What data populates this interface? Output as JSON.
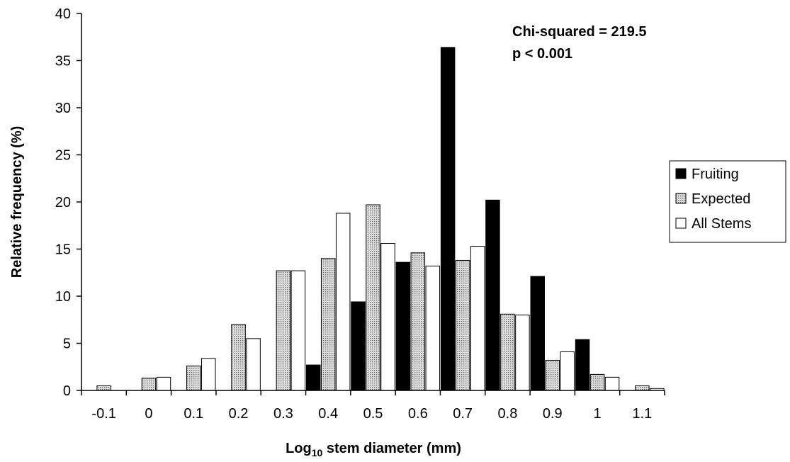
{
  "chart_data": {
    "type": "bar",
    "categories": [
      "-0.1",
      "0",
      "0.1",
      "0.2",
      "0.3",
      "0.4",
      "0.5",
      "0.6",
      "0.7",
      "0.8",
      "0.9",
      "1",
      "1.1"
    ],
    "series": [
      {
        "name": "Fruiting",
        "values": [
          0,
          0,
          0,
          0,
          0,
          2.7,
          9.4,
          13.6,
          36.4,
          20.2,
          12.1,
          5.4,
          0
        ],
        "color": "#000000",
        "fill": "solid"
      },
      {
        "name": "Expected",
        "values": [
          0.5,
          1.3,
          2.6,
          7.0,
          12.7,
          14.0,
          19.7,
          14.6,
          13.8,
          8.1,
          3.2,
          1.7,
          0.5
        ],
        "color": "#c8c8c8",
        "fill": "dotted"
      },
      {
        "name": "All Stems",
        "values": [
          0,
          1.4,
          3.4,
          5.5,
          12.7,
          18.8,
          15.6,
          13.2,
          15.3,
          8.0,
          4.1,
          1.4,
          0.2
        ],
        "color": "#ffffff",
        "fill": "hollow"
      }
    ],
    "xlabel_main": "Log",
    "xlabel_sub": "10",
    "xlabel_rest": " stem diameter (mm)",
    "ylabel": "Relative frequency (%)",
    "ylim": [
      0,
      40
    ],
    "yticks": [
      "0",
      "5",
      "10",
      "15",
      "20",
      "25",
      "30",
      "35",
      "40"
    ],
    "ytick_values": [
      0,
      5,
      10,
      15,
      20,
      25,
      30,
      35,
      40
    ],
    "annotation": {
      "line1": "Chi-squared = 219.5",
      "line2": "p < 0.001"
    },
    "legend_position": "right",
    "grid": false
  }
}
